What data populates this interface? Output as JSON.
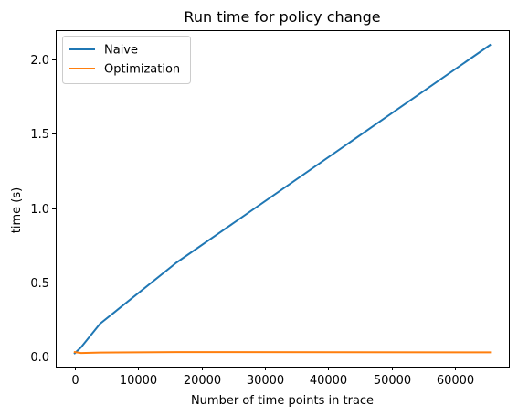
{
  "chart_data": {
    "type": "line",
    "title": "Run time for policy change",
    "xlabel": "Number of time points in trace",
    "ylabel": "time (s)",
    "xlim": [
      -3000,
      68500
    ],
    "ylim": [
      -0.07,
      2.2
    ],
    "xticks": [
      0,
      10000,
      20000,
      30000,
      40000,
      50000,
      60000
    ],
    "xtick_labels": [
      "0",
      "10000",
      "20000",
      "30000",
      "40000",
      "50000",
      "60000"
    ],
    "yticks": [
      0.0,
      0.5,
      1.0,
      1.5,
      2.0
    ],
    "ytick_labels": [
      "0.0",
      "0.5",
      "1.0",
      "1.5",
      "2.0"
    ],
    "grid": false,
    "legend_position": "top-left",
    "series": [
      {
        "name": "Naive",
        "color": "#1f77b4",
        "x": [
          0,
          1000,
          4000,
          16000,
          65536
        ],
        "y": [
          0.02,
          0.06,
          0.22,
          0.63,
          2.1
        ]
      },
      {
        "name": "Optimization",
        "color": "#ff7f0e",
        "x": [
          0,
          1000,
          4000,
          16000,
          65536
        ],
        "y": [
          0.028,
          0.022,
          0.025,
          0.028,
          0.026
        ]
      }
    ]
  }
}
